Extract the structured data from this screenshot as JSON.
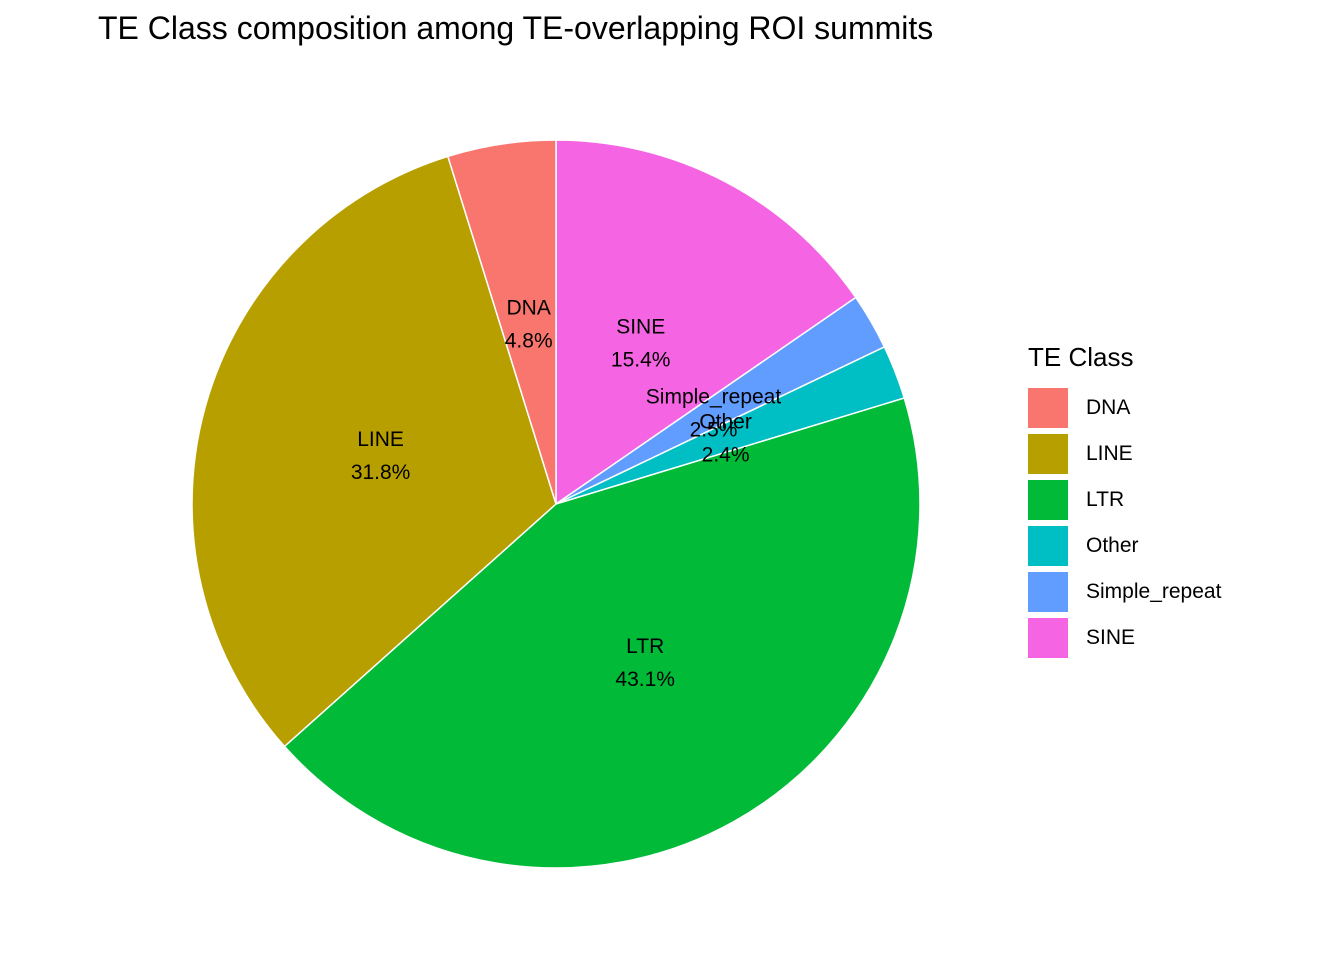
{
  "chart_data": {
    "type": "pie",
    "title": "TE Class composition among TE-overlapping ROI summits",
    "legend_title": "TE Class",
    "legend_position": "right",
    "slices": [
      {
        "label": "DNA",
        "value": 4.8,
        "value_label": "4.8%",
        "color": "#F8766D"
      },
      {
        "label": "LINE",
        "value": 31.8,
        "value_label": "31.8%",
        "color": "#B79F00"
      },
      {
        "label": "LTR",
        "value": 43.1,
        "value_label": "43.1%",
        "color": "#00BA38"
      },
      {
        "label": "Other",
        "value": 2.4,
        "value_label": "2.4%",
        "color": "#00BFC4"
      },
      {
        "label": "Simple_repeat",
        "value": 2.5,
        "value_label": "2.5%",
        "color": "#619CFF"
      },
      {
        "label": "SINE",
        "value": 15.4,
        "value_label": "15.4%",
        "color": "#F564E3"
      }
    ],
    "drawing_order": [
      "SINE",
      "Simple_repeat",
      "Other",
      "LTR",
      "LINE",
      "DNA"
    ]
  }
}
